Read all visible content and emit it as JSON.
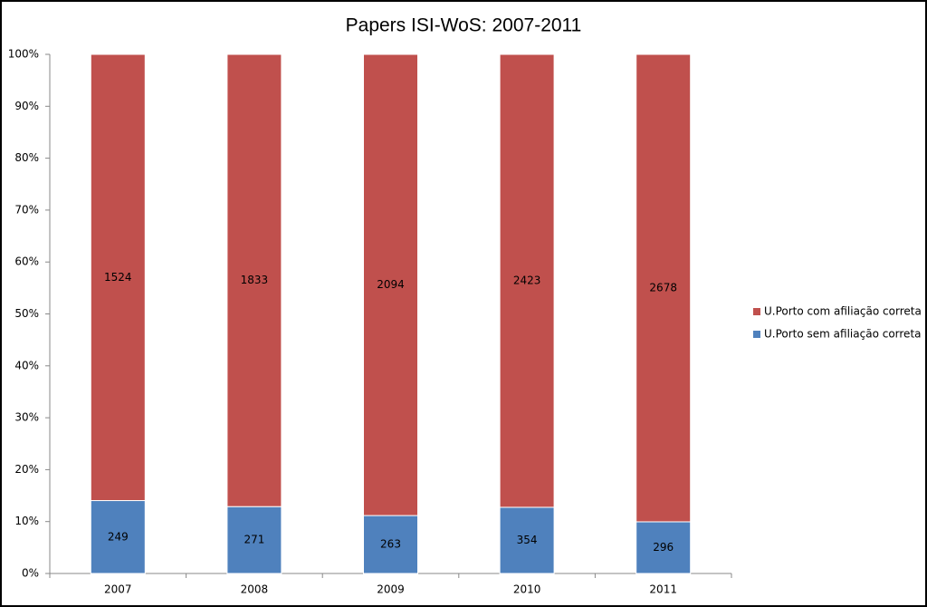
{
  "chart_data": {
    "type": "bar",
    "stacking": "percent",
    "title": "Papers ISI-WoS: 2007-2011",
    "categories": [
      "2007",
      "2008",
      "2009",
      "2010",
      "2011"
    ],
    "series": [
      {
        "name": "U.Porto sem afiliação correta",
        "color": "#4f81bd",
        "values": [
          249,
          271,
          263,
          354,
          296
        ]
      },
      {
        "name": "U.Porto com afiliação correta",
        "color": "#c0504d",
        "values": [
          1524,
          1833,
          2094,
          2423,
          2678
        ]
      }
    ],
    "ylim": [
      0,
      100
    ],
    "yticks": [
      {
        "value": 0,
        "label": "0%"
      },
      {
        "value": 10,
        "label": "10%"
      },
      {
        "value": 20,
        "label": "20%"
      },
      {
        "value": 30,
        "label": "30%"
      },
      {
        "value": 40,
        "label": "40%"
      },
      {
        "value": 50,
        "label": "50%"
      },
      {
        "value": 60,
        "label": "60%"
      },
      {
        "value": 70,
        "label": "70%"
      },
      {
        "value": 80,
        "label": "80%"
      },
      {
        "value": 90,
        "label": "90%"
      },
      {
        "value": 100,
        "label": "100%"
      }
    ],
    "legend": "right"
  }
}
